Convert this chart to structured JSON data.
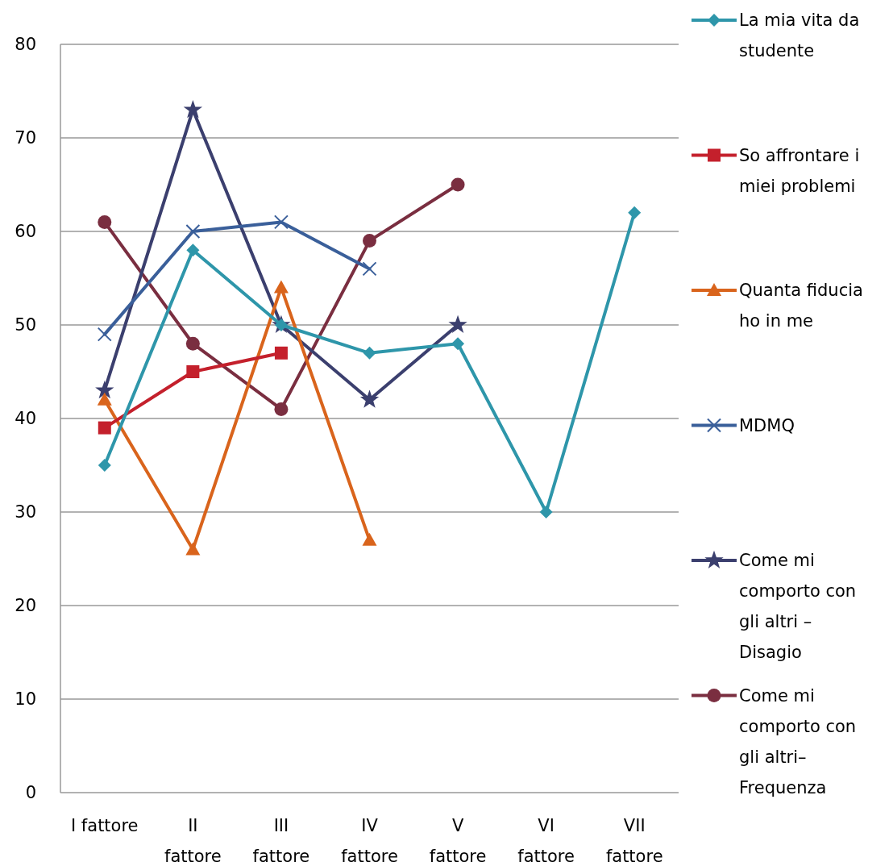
{
  "chart_data": {
    "type": "line",
    "categories": [
      "I fattore",
      "II fattore",
      "III fattore",
      "IV fattore",
      "V fattore",
      "VI fattore",
      "VII fattore"
    ],
    "series": [
      {
        "name": "La mia vita da studente",
        "color": "#2e96aa",
        "marker": "diamond",
        "values": [
          35,
          58,
          50,
          47,
          48,
          30,
          62
        ]
      },
      {
        "name": "So affrontare i miei problemi",
        "color": "#c4202c",
        "marker": "square",
        "values": [
          39,
          45,
          47,
          null,
          null,
          null,
          null
        ]
      },
      {
        "name": "Quanta fiducia ho in me",
        "color": "#d9641c",
        "marker": "triangle",
        "values": [
          42,
          26,
          54,
          27,
          null,
          null,
          null
        ]
      },
      {
        "name": "MDMQ",
        "color": "#3a5f9a",
        "marker": "cross",
        "values": [
          49,
          60,
          61,
          56,
          null,
          null,
          null
        ]
      },
      {
        "name": "Come mi comporto con gli altri – Disagio",
        "color": "#3b3f6e",
        "marker": "star",
        "values": [
          43,
          73,
          50,
          42,
          50,
          null,
          null
        ]
      },
      {
        "name": "Come mi comporto con gli altri–Frequenza",
        "color": "#7a2e40",
        "marker": "circle",
        "values": [
          61,
          48,
          41,
          59,
          65,
          null,
          null
        ]
      }
    ],
    "ylim": [
      0,
      80
    ],
    "yticks": [
      0,
      10,
      20,
      30,
      40,
      50,
      60,
      70,
      80
    ],
    "grid": "y",
    "legend": "right",
    "line_style": "solid"
  }
}
